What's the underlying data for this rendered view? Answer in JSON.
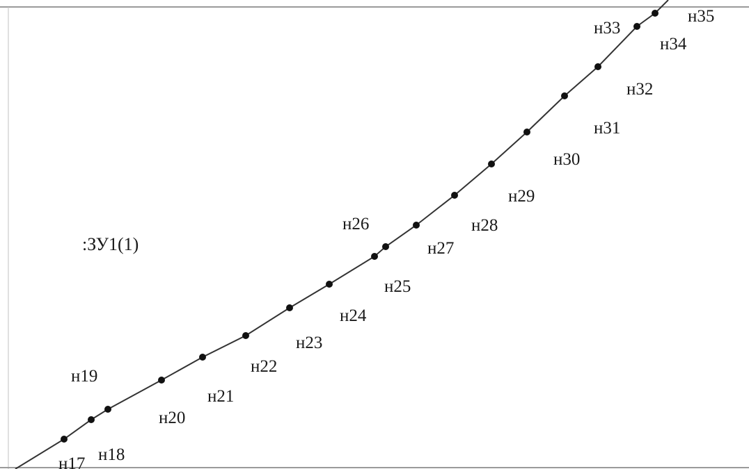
{
  "plot_label": ":ЗУ1(1)",
  "points": [
    {
      "label": "н17"
    },
    {
      "label": "н18"
    },
    {
      "label": "н19"
    },
    {
      "label": "н20"
    },
    {
      "label": "н21"
    },
    {
      "label": "н22"
    },
    {
      "label": "н23"
    },
    {
      "label": "н24"
    },
    {
      "label": "н25"
    },
    {
      "label": "н26"
    },
    {
      "label": "н27"
    },
    {
      "label": "н28"
    },
    {
      "label": "н29"
    },
    {
      "label": "н30"
    },
    {
      "label": "н31"
    },
    {
      "label": "н32"
    },
    {
      "label": "н33"
    },
    {
      "label": "н34"
    },
    {
      "label": "н35"
    }
  ],
  "colors": {
    "line": "#333333",
    "point": "#111111",
    "frame": "#9a9a9a"
  }
}
